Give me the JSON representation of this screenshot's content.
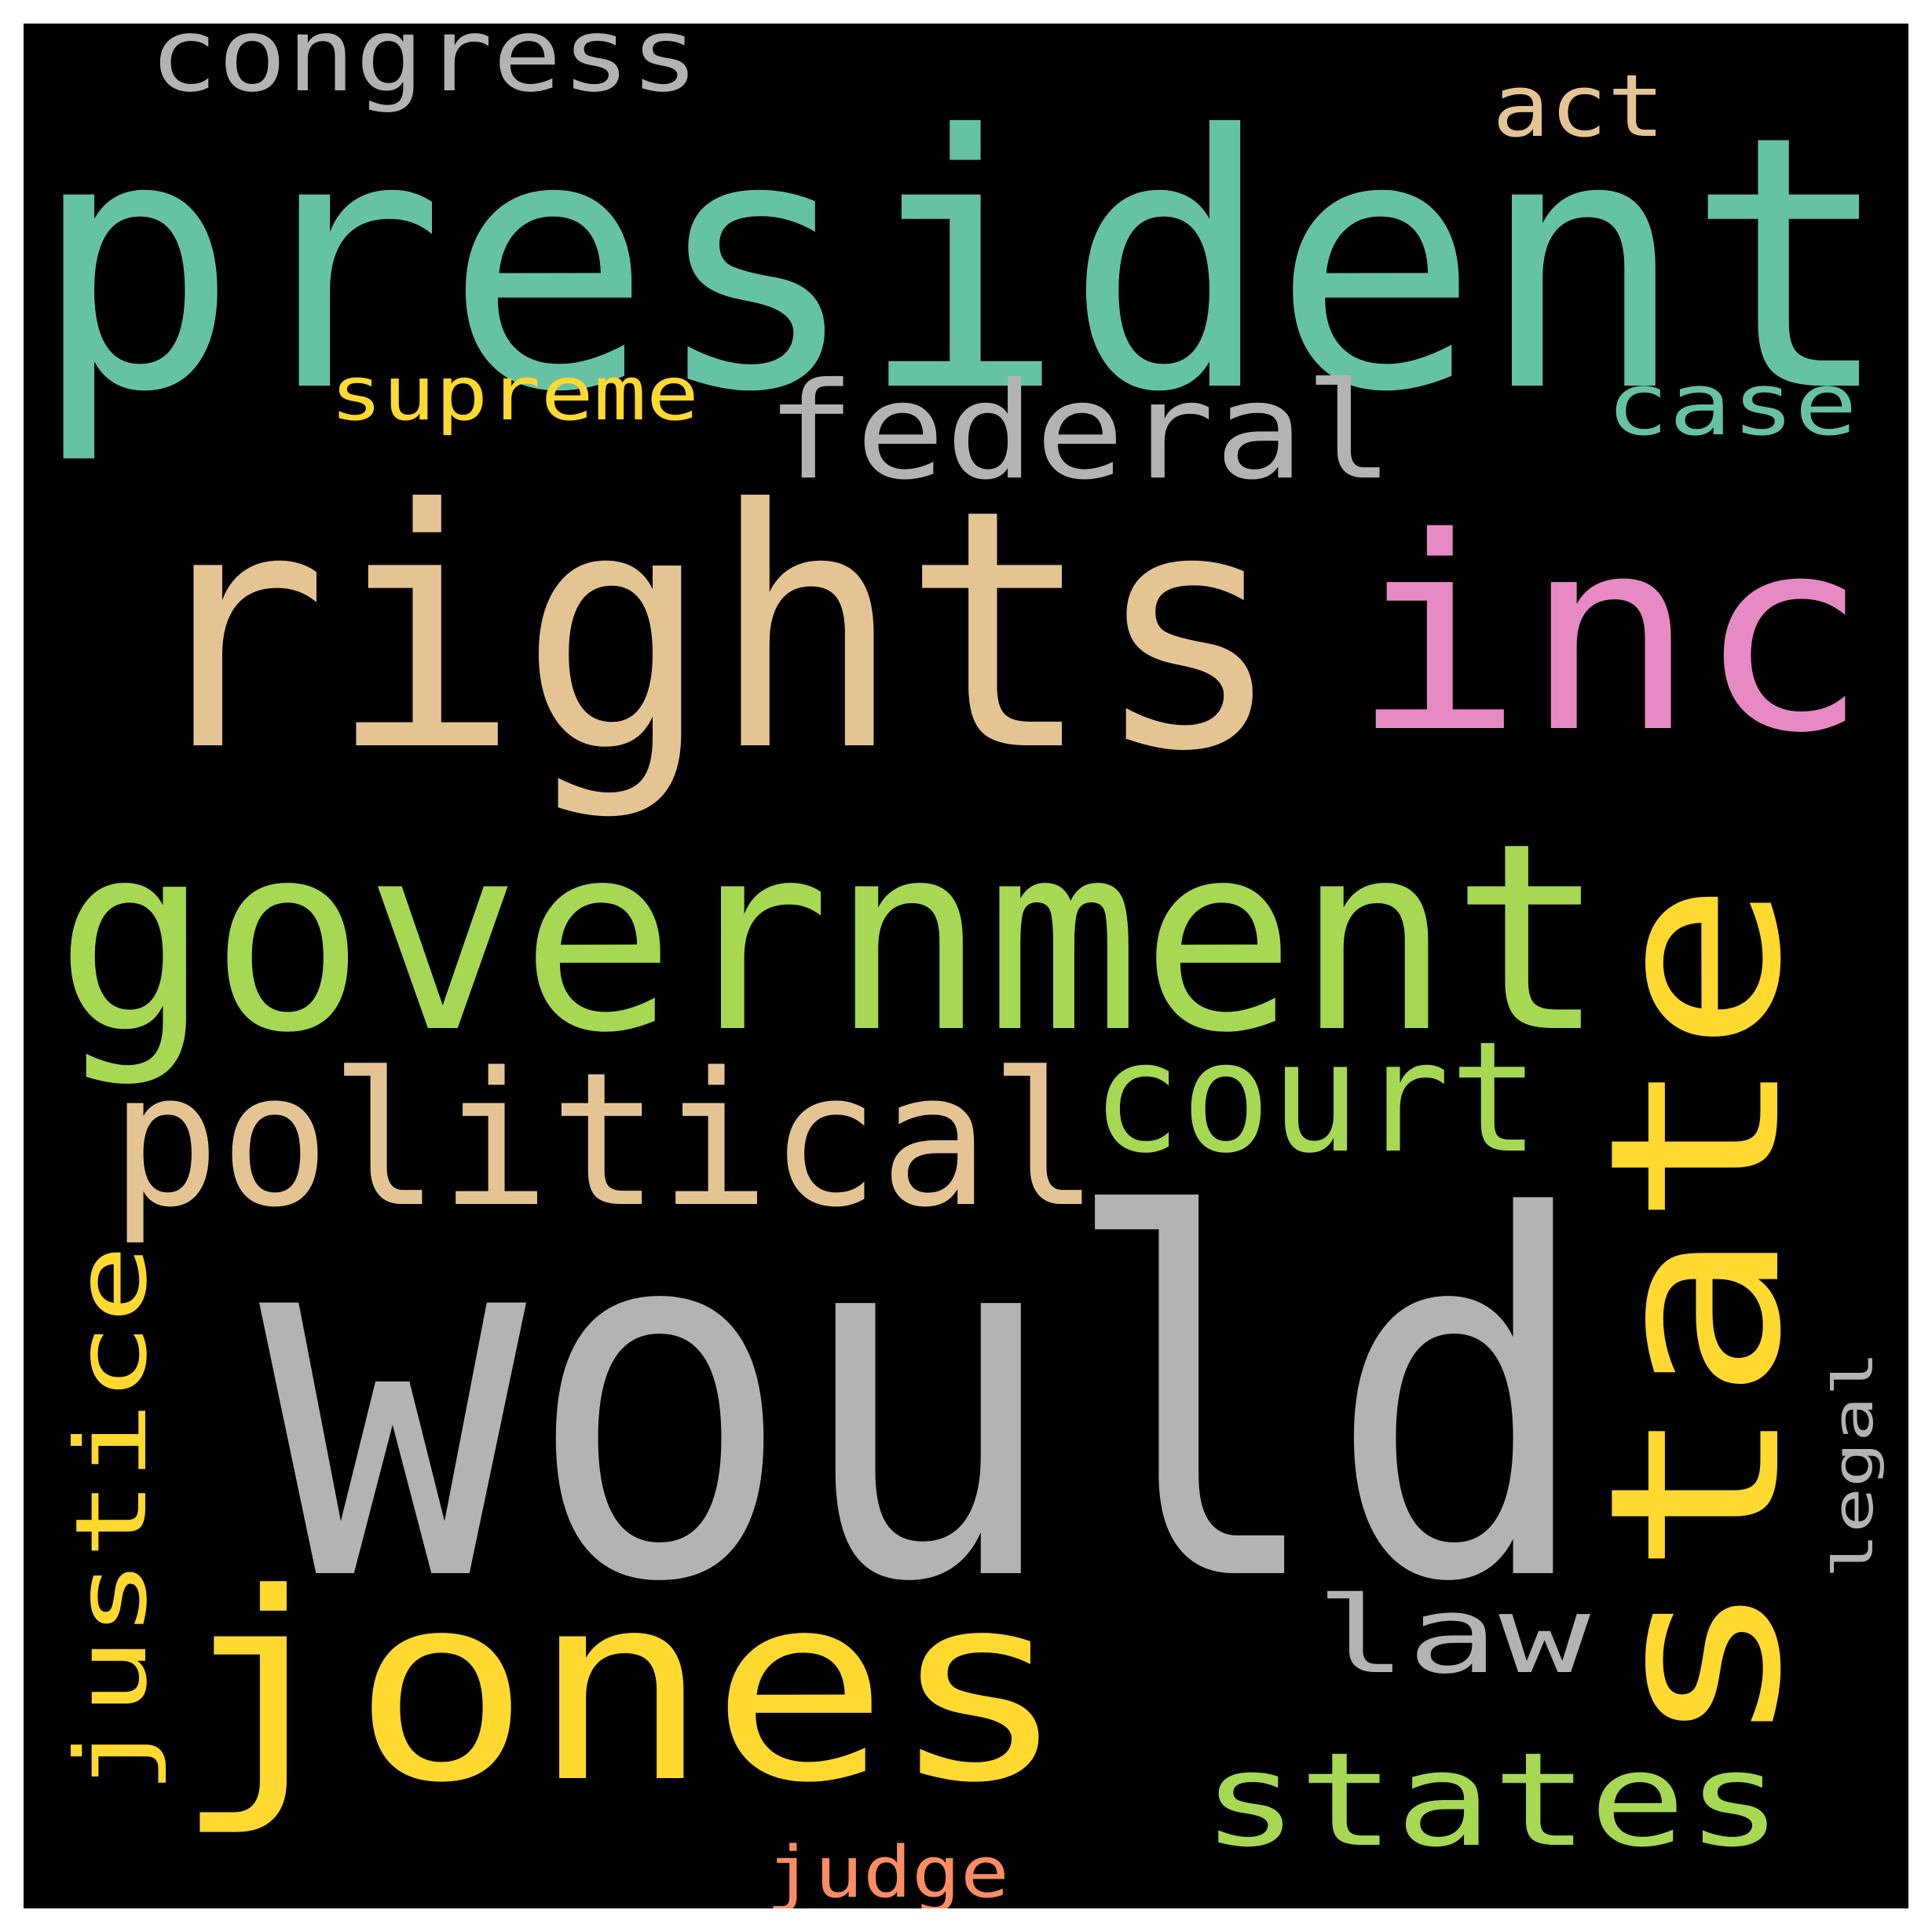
{
  "colors": {
    "background": "#000000",
    "frame": "#ffffff",
    "teal": "#66c2a5",
    "tan": "#e5c494",
    "pink": "#e78ac3",
    "green": "#a6d854",
    "yellow": "#ffd92f",
    "gray": "#b3b3b3",
    "salmon": "#fc8d62"
  },
  "words": [
    {
      "key": "would",
      "text": "would",
      "color": "#b3b3b3",
      "orientation": "horizontal"
    },
    {
      "key": "president",
      "text": "president",
      "color": "#66c2a5",
      "orientation": "horizontal"
    },
    {
      "key": "rights",
      "text": "rights",
      "color": "#e5c494",
      "orientation": "horizontal"
    },
    {
      "key": "inc",
      "text": "inc",
      "color": "#e78ac3",
      "orientation": "horizontal"
    },
    {
      "key": "government",
      "text": "government",
      "color": "#a6d854",
      "orientation": "horizontal"
    },
    {
      "key": "state",
      "text": "state",
      "color": "#ffd92f",
      "orientation": "vertical"
    },
    {
      "key": "jones",
      "text": "jones",
      "color": "#ffd92f",
      "orientation": "horizontal"
    },
    {
      "key": "political",
      "text": "political",
      "color": "#e5c494",
      "orientation": "horizontal"
    },
    {
      "key": "court",
      "text": "court",
      "color": "#a6d854",
      "orientation": "horizontal"
    },
    {
      "key": "federal",
      "text": "federal",
      "color": "#b3b3b3",
      "orientation": "horizontal"
    },
    {
      "key": "states",
      "text": "states",
      "color": "#a6d854",
      "orientation": "horizontal"
    },
    {
      "key": "justice",
      "text": "justice",
      "color": "#ffd92f",
      "orientation": "vertical"
    },
    {
      "key": "congress",
      "text": "congress",
      "color": "#b3b3b3",
      "orientation": "horizontal"
    },
    {
      "key": "law",
      "text": "law",
      "color": "#b3b3b3",
      "orientation": "horizontal"
    },
    {
      "key": "case",
      "text": "case",
      "color": "#66c2a5",
      "orientation": "horizontal"
    },
    {
      "key": "act",
      "text": "act",
      "color": "#e5c494",
      "orientation": "horizontal"
    },
    {
      "key": "supreme",
      "text": "supreme",
      "color": "#ffd92f",
      "orientation": "horizontal"
    },
    {
      "key": "judge",
      "text": "judge",
      "color": "#fc8d62",
      "orientation": "horizontal"
    },
    {
      "key": "legal",
      "text": "legal",
      "color": "#b3b3b3",
      "orientation": "vertical"
    }
  ]
}
